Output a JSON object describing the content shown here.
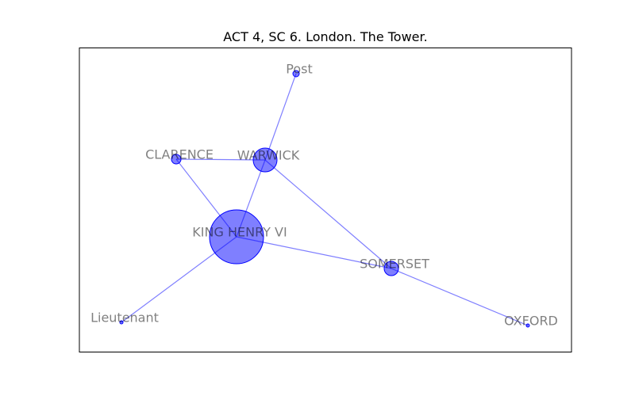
{
  "title": "ACT 4, SC 6. London. The Tower.",
  "colors": {
    "node": "#0000ff",
    "edge": "#0000ff",
    "label": "#808080"
  },
  "nodes": [
    {
      "id": "king_henry_vi",
      "label": "KING HENRY VI"
    },
    {
      "id": "warwick",
      "label": "WARWICK"
    },
    {
      "id": "clarence",
      "label": "CLARENCE"
    },
    {
      "id": "somerset",
      "label": "SOMERSET"
    },
    {
      "id": "post",
      "label": "Post"
    },
    {
      "id": "lieutenant",
      "label": "Lieutenant"
    },
    {
      "id": "oxford",
      "label": "OXFORD"
    }
  ],
  "edges": [
    {
      "source": "post",
      "target": "warwick"
    },
    {
      "source": "clarence",
      "target": "warwick"
    },
    {
      "source": "clarence",
      "target": "king_henry_vi"
    },
    {
      "source": "warwick",
      "target": "king_henry_vi"
    },
    {
      "source": "warwick",
      "target": "somerset"
    },
    {
      "source": "king_henry_vi",
      "target": "somerset"
    },
    {
      "source": "king_henry_vi",
      "target": "lieutenant"
    },
    {
      "source": "somerset",
      "target": "oxford"
    }
  ]
}
